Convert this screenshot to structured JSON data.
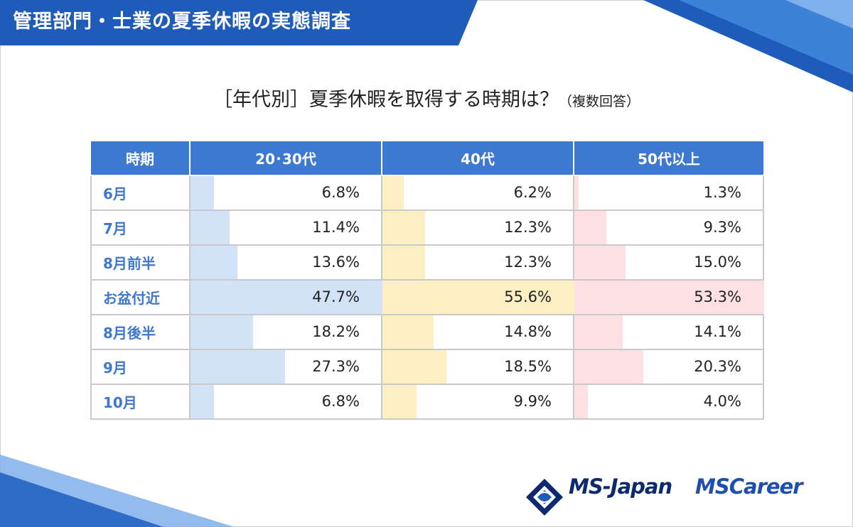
{
  "banner": {
    "title": "管理部門・士業の夏季休暇の実態調査"
  },
  "chart_data": {
    "type": "table",
    "title": "［年代別］夏季休暇を取得する時期は？",
    "title_note": "（複数回答）",
    "row_header": "時期",
    "unit": "%",
    "categories": [
      "6月",
      "7月",
      "8月前半",
      "お盆付近",
      "8月後半",
      "9月",
      "10月"
    ],
    "highlight_row": "お盆付近",
    "series": [
      {
        "name": "20･30代",
        "color": "#d2e2f7",
        "values": [
          6.8,
          11.4,
          13.6,
          47.7,
          18.2,
          27.3,
          6.8
        ],
        "labels": [
          "6.8%",
          "11.4%",
          "13.6%",
          "47.7%",
          "18.2%",
          "27.3%",
          "6.8%"
        ]
      },
      {
        "name": "40代",
        "color": "#fcf0c2",
        "values": [
          6.2,
          12.3,
          12.3,
          55.6,
          14.8,
          18.5,
          9.9
        ],
        "labels": [
          "6.2%",
          "12.3%",
          "12.3%",
          "55.6%",
          "14.8%",
          "18.5%",
          "9.9%"
        ]
      },
      {
        "name": "50代以上",
        "color": "#fce0e3",
        "values": [
          1.3,
          9.3,
          15.0,
          53.3,
          14.1,
          20.3,
          4.0
        ],
        "labels": [
          "1.3%",
          "9.3%",
          "15.0%",
          "53.3%",
          "14.1%",
          "20.3%",
          "4.0%"
        ]
      }
    ]
  },
  "logos": {
    "msjapan": "MS-Japan",
    "mscareer": "MSCareer"
  },
  "colors": {
    "header": "#3d79d0",
    "label": "#3f77cc",
    "banner": "#1f5bb8"
  }
}
